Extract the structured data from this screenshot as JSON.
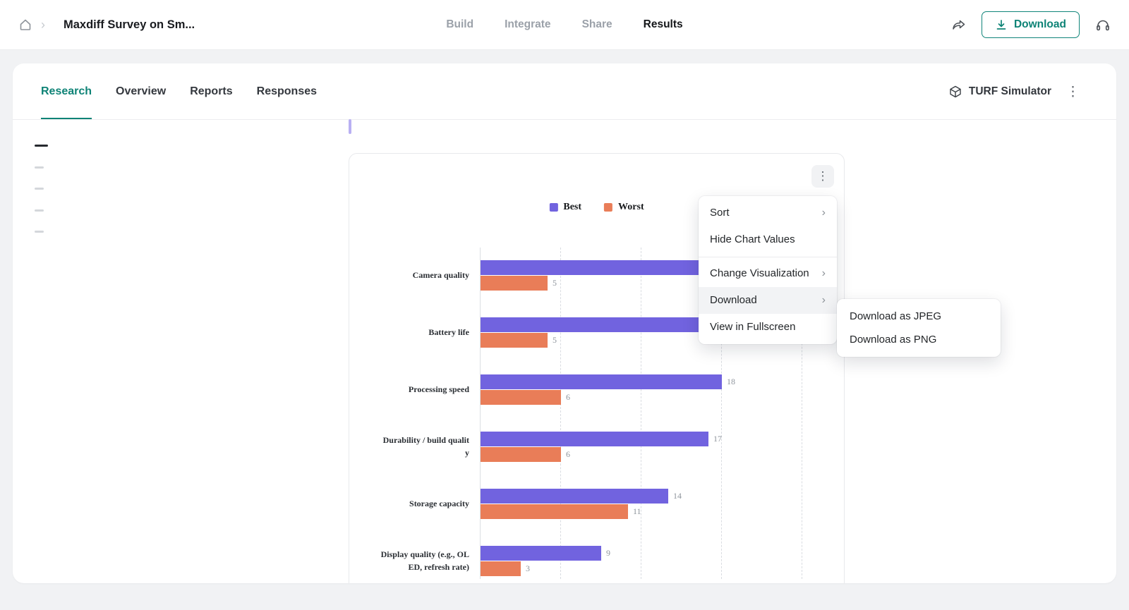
{
  "topbar": {
    "title": "Maxdiff Survey on Sm...",
    "nav": [
      {
        "label": "Build",
        "active": false
      },
      {
        "label": "Integrate",
        "active": false
      },
      {
        "label": "Share",
        "active": false
      },
      {
        "label": "Results",
        "active": true
      }
    ],
    "download_button": "Download"
  },
  "tabs": [
    {
      "label": "Research",
      "active": true
    },
    {
      "label": "Overview",
      "active": false
    },
    {
      "label": "Reports",
      "active": false
    },
    {
      "label": "Responses",
      "active": false
    }
  ],
  "turf_simulator_label": "TURF Simulator",
  "context_menu": {
    "items": [
      {
        "label": "Sort",
        "submenu": true,
        "highlighted": false,
        "divider_before": false
      },
      {
        "label": "Hide Chart Values",
        "submenu": false,
        "highlighted": false,
        "divider_before": false
      },
      {
        "label": "Change Visualization",
        "submenu": true,
        "highlighted": false,
        "divider_before": true
      },
      {
        "label": "Download",
        "submenu": true,
        "highlighted": true,
        "divider_before": false
      },
      {
        "label": "View in Fullscreen",
        "submenu": false,
        "highlighted": false,
        "divider_before": false
      }
    ],
    "submenu_items": [
      "Download as JPEG",
      "Download as PNG"
    ]
  },
  "chart_data": {
    "type": "bar",
    "orientation": "horizontal",
    "title": "",
    "legend": [
      {
        "name": "Best",
        "color": "#7163df"
      },
      {
        "name": "Worst",
        "color": "#e97d58"
      }
    ],
    "categories": [
      {
        "label": "Camera quality",
        "lines": [
          "Camera quality"
        ]
      },
      {
        "label": "Battery life",
        "lines": [
          "Battery life"
        ]
      },
      {
        "label": "Processing speed",
        "lines": [
          "Processing speed"
        ]
      },
      {
        "label": "Durability / build quality",
        "lines": [
          "Durability / build qualit",
          "y"
        ]
      },
      {
        "label": "Storage capacity",
        "lines": [
          "Storage capacity"
        ]
      },
      {
        "label": "Display quality (e.g., OLED, refresh rate)",
        "lines": [
          "Display quality (e.g., OL",
          "ED, refresh rate)"
        ]
      }
    ],
    "series": [
      {
        "name": "Best",
        "values": [
          20,
          19,
          18,
          17,
          14,
          9
        ],
        "value_labels": [
          "",
          "",
          "18",
          "17",
          "14",
          "9"
        ]
      },
      {
        "name": "Worst",
        "values": [
          5,
          5,
          6,
          6,
          11,
          3
        ],
        "value_labels": [
          "5",
          "5",
          "6",
          "6",
          "11",
          "3"
        ]
      }
    ],
    "xlim": [
      0,
      24
    ],
    "gridlines": [
      6,
      12,
      18,
      24
    ]
  }
}
